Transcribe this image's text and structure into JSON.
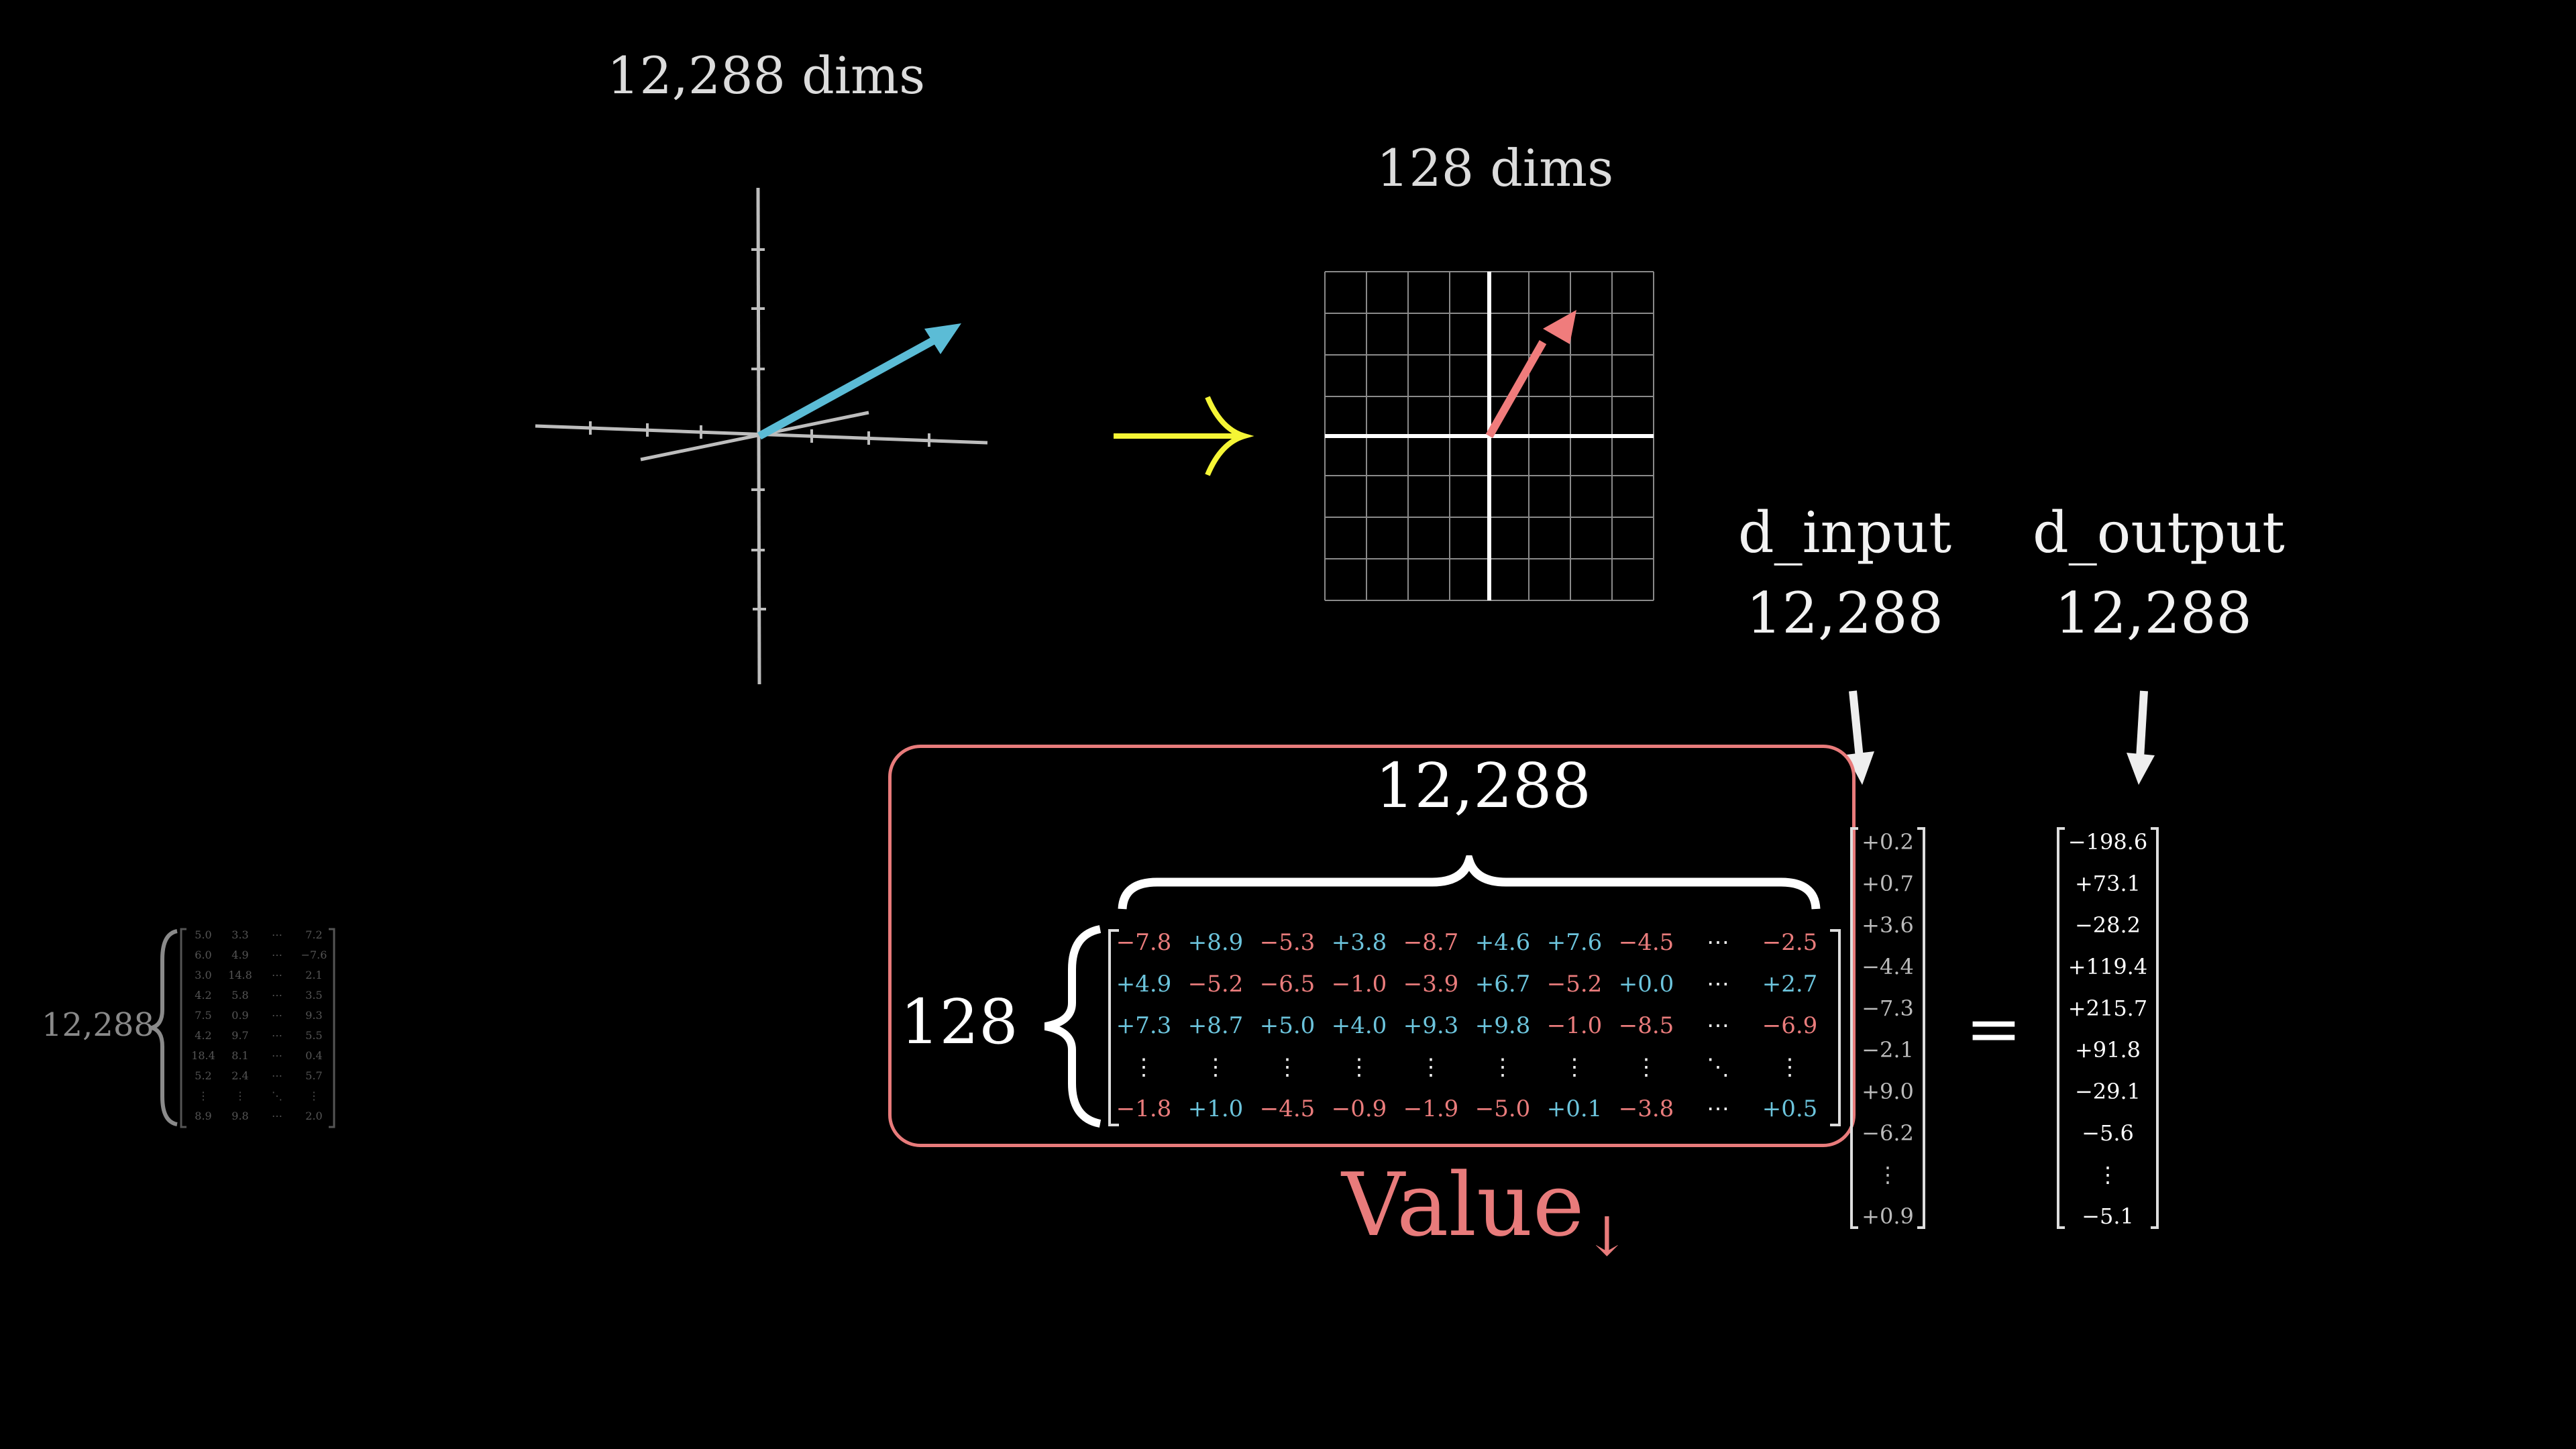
{
  "left_plot": {
    "title": "12,288 dims"
  },
  "right_plot": {
    "title": "128 dims"
  },
  "labels": {
    "d_input": "d_input",
    "d_input_value": "12,288",
    "d_output": "d_output",
    "d_output_value": "12,288",
    "matrix_cols": "12,288",
    "matrix_rows": "128",
    "matrix_name": "Value",
    "matrix_subscript": "↓",
    "equals": "=",
    "small_matrix_rows": "12,288"
  },
  "matrix": {
    "rows": [
      [
        "−7.8",
        "+8.9",
        "−5.3",
        "+3.8",
        "−8.7",
        "+4.6",
        "+7.6",
        "−4.5",
        "⋯",
        "−2.5"
      ],
      [
        "+4.9",
        "−5.2",
        "−6.5",
        "−1.0",
        "−3.9",
        "+6.7",
        "−5.2",
        "+0.0",
        "⋯",
        "+2.7"
      ],
      [
        "+7.3",
        "+8.7",
        "+5.0",
        "+4.0",
        "+9.3",
        "+9.8",
        "−1.0",
        "−8.5",
        "⋯",
        "−6.9"
      ],
      [
        "⋮",
        "⋮",
        "⋮",
        "⋮",
        "⋮",
        "⋮",
        "⋮",
        "⋮",
        "⋱",
        "⋮"
      ],
      [
        "−1.8",
        "+1.0",
        "−4.5",
        "−0.9",
        "−1.9",
        "−5.0",
        "+0.1",
        "−3.8",
        "⋯",
        "+0.5"
      ]
    ]
  },
  "input_vector": [
    "+0.2",
    "+0.7",
    "+3.6",
    "−4.4",
    "−7.3",
    "−2.1",
    "+9.0",
    "−6.2",
    "⋮",
    "+0.9"
  ],
  "output_vector": [
    "−198.6",
    "+73.1",
    "−28.2",
    "+119.4",
    "+215.7",
    "+91.8",
    "−29.1",
    "−5.6",
    "⋮",
    "−5.1"
  ],
  "small_matrix": [
    [
      "5.0",
      "3.3",
      "⋯",
      "7.2"
    ],
    [
      "6.0",
      "4.9",
      "⋯",
      "−7.6"
    ],
    [
      "3.0",
      "14.8",
      "⋯",
      "2.1"
    ],
    [
      "4.2",
      "5.8",
      "⋯",
      "3.5"
    ],
    [
      "7.5",
      "0.9",
      "⋯",
      "9.3"
    ],
    [
      "4.2",
      "9.7",
      "⋯",
      "5.5"
    ],
    [
      "18.4",
      "8.1",
      "⋯",
      "0.4"
    ],
    [
      "5.2",
      "2.4",
      "⋯",
      "5.7"
    ],
    [
      "⋮",
      "⋮",
      "⋱",
      "⋮"
    ],
    [
      "8.9",
      "9.8",
      "⋯",
      "2.0"
    ]
  ],
  "colors": {
    "blue_arrow": "#5bbcd6",
    "red_arrow": "#f07c7c",
    "yellow_arrow": "#f5f535",
    "box": "#e87b7b",
    "value_text": "#e87b7b"
  }
}
